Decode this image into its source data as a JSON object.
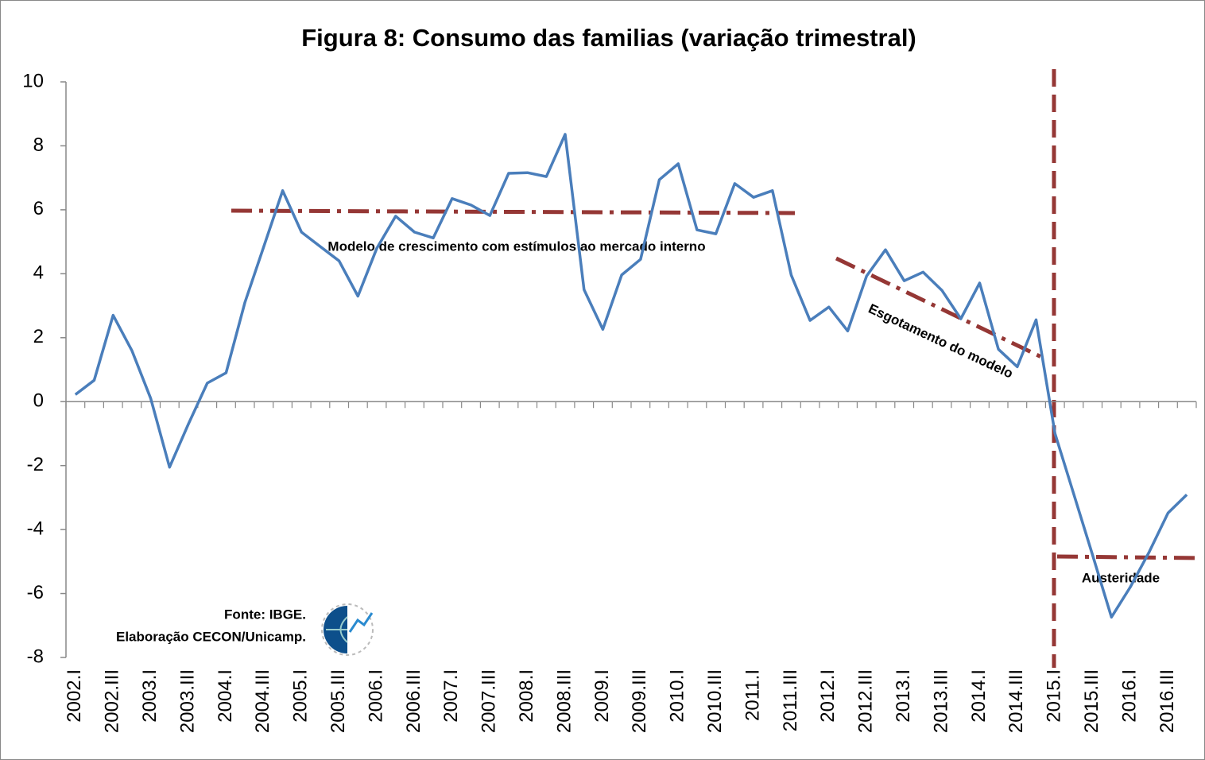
{
  "chart_data": {
    "type": "line",
    "title": "Figura 8: Consumo das familias (variação trimestral)",
    "categories": [
      "2002.I",
      null,
      "2002.III",
      null,
      "2003.I",
      null,
      "2003.III",
      null,
      "2004.I",
      null,
      "2004.III",
      null,
      "2005.I",
      null,
      "2005.III",
      null,
      "2006.I",
      null,
      "2006.III",
      null,
      "2007.I",
      null,
      "2007.III",
      null,
      "2008.I",
      null,
      "2008.III",
      null,
      "2009.I",
      null,
      "2009.III",
      null,
      "2010.I",
      null,
      "2010.III",
      null,
      "2011.I",
      null,
      "2011.III",
      null,
      "2012.I",
      null,
      "2012.III",
      null,
      "2013.I",
      null,
      "2013.III",
      null,
      "2014.I",
      null,
      "2014.III",
      null,
      "2015.I",
      null,
      "2015.III",
      null,
      "2016.I",
      null,
      "2016.III",
      null
    ],
    "series": [
      {
        "name": "Consumo das familias",
        "color": "#4a7ebb",
        "values": [
          0.22,
          0.67,
          2.7,
          1.6,
          0.1,
          -2.05,
          -0.7,
          0.58,
          0.9,
          3.1,
          4.85,
          6.6,
          5.3,
          4.85,
          4.4,
          3.3,
          4.8,
          5.8,
          5.3,
          5.12,
          6.35,
          6.15,
          5.82,
          7.14,
          7.16,
          7.04,
          8.36,
          3.5,
          2.26,
          3.96,
          4.45,
          6.94,
          7.44,
          5.37,
          5.25,
          6.82,
          6.39,
          6.6,
          3.96,
          2.54,
          2.96,
          2.21,
          3.93,
          4.75,
          3.78,
          4.05,
          3.48,
          2.59,
          3.71,
          1.64,
          1.09,
          2.56,
          -1.0,
          -2.9,
          -4.8,
          -6.74,
          -5.8,
          -4.7,
          -3.48,
          -2.91
        ]
      }
    ],
    "ylim": [
      -8,
      10
    ],
    "yticks": [
      -8,
      -6,
      -4,
      -2,
      0,
      2,
      4,
      6,
      8,
      10
    ],
    "annotations": [
      "Modelo de crescimento com estímulos ao mercado interno",
      "Esgotamento do modelo",
      "Austeridade",
      "Fonte: IBGE.",
      "Elaboração CECON/Unicamp."
    ]
  }
}
